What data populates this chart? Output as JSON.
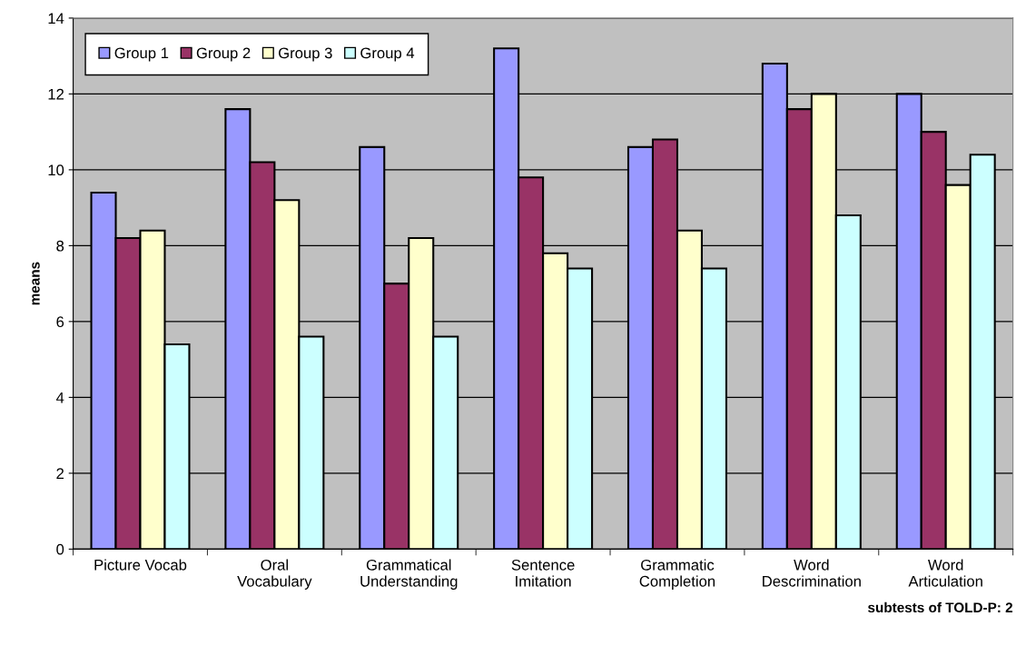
{
  "chart_data": {
    "type": "bar",
    "xlabel": "subtests of TOLD-P: 2",
    "ylabel": "means",
    "categories": [
      "Picture Vocab",
      "Oral\nVocabulary",
      "Grammatical\nUnderstanding",
      "Sentence\nImitation",
      "Grammatic\nCompletion",
      "Word\nDescrimination",
      "Word\nArticulation"
    ],
    "series": [
      {
        "name": "Group 1",
        "color": "#9999ff",
        "values": [
          9.4,
          11.6,
          10.6,
          13.2,
          10.6,
          12.8,
          12.0
        ]
      },
      {
        "name": "Group 2",
        "color": "#993366",
        "values": [
          8.2,
          10.2,
          7.0,
          9.8,
          10.8,
          11.6,
          11.0
        ]
      },
      {
        "name": "Group 3",
        "color": "#ffffcc",
        "values": [
          8.4,
          9.2,
          8.2,
          7.8,
          8.4,
          12.0,
          9.6
        ]
      },
      {
        "name": "Group 4",
        "color": "#ccffff",
        "values": [
          5.4,
          5.6,
          5.6,
          7.4,
          7.4,
          8.8,
          10.4
        ]
      }
    ],
    "ylim": [
      0,
      14
    ],
    "yticks": [
      0,
      2,
      4,
      6,
      8,
      10,
      12,
      14
    ],
    "grid": "y",
    "legend": "top left"
  }
}
